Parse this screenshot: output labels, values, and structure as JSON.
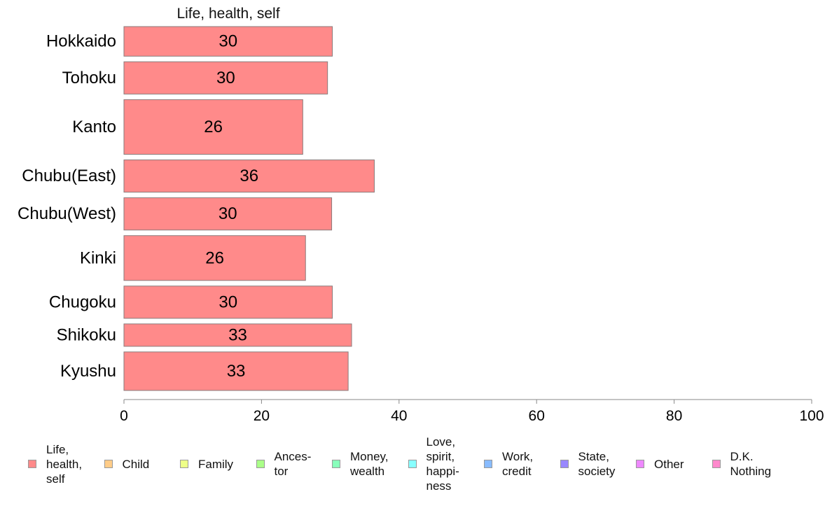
{
  "chart_data": {
    "type": "bar",
    "orientation": "horizontal",
    "series_title": "Life, health, self",
    "categories": [
      "Hokkaido",
      "Tohoku",
      "Kanto",
      "Chubu(East)",
      "Chubu(West)",
      "Kinki",
      "Chugoku",
      "Shikoku",
      "Kyushu"
    ],
    "values": [
      30.3,
      29.6,
      26.0,
      36.4,
      30.2,
      26.4,
      30.3,
      33.1,
      32.6
    ],
    "value_labels": [
      "30",
      "30",
      "26",
      "36",
      "30",
      "26",
      "30",
      "33",
      "33"
    ],
    "category_weights": [
      0.66,
      0.72,
      1.22,
      0.72,
      0.72,
      1.0,
      0.72,
      0.5,
      0.86
    ],
    "xlim": [
      0,
      100
    ],
    "xticks": [
      "0",
      "20",
      "40",
      "60",
      "80",
      "100"
    ],
    "xtick_values": [
      0,
      20,
      40,
      60,
      80,
      100
    ],
    "bar_color": "#ff8a8a",
    "legend": [
      {
        "label": "Life,\nhealth,\nself",
        "color": "#ff8a8a"
      },
      {
        "label": "Child",
        "color": "#ffcc88"
      },
      {
        "label": "Family",
        "color": "#eeff88"
      },
      {
        "label": "Ances-\ntor",
        "color": "#aaff88"
      },
      {
        "label": "Money,\nwealth",
        "color": "#88ffbb"
      },
      {
        "label": "Love,\nspirit,\nhappi-\nness",
        "color": "#88ffff"
      },
      {
        "label": "Work,\ncredit",
        "color": "#88bbff"
      },
      {
        "label": "State,\nsociety",
        "color": "#9988ff"
      },
      {
        "label": "Other",
        "color": "#ee88ff"
      },
      {
        "label": "D.K.\nNothing",
        "color": "#ff88cc"
      }
    ],
    "legend_position": "bottom"
  }
}
